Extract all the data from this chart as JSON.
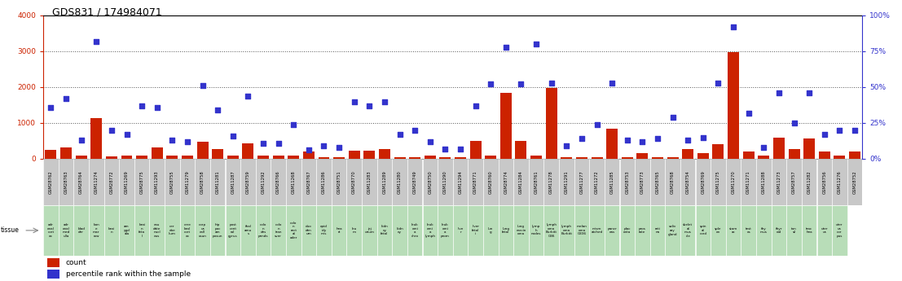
{
  "title": "GDS831 / 174984071",
  "samples": [
    "GSM28762",
    "GSM28763",
    "GSM28764",
    "GSM11274",
    "GSM28772",
    "GSM11269",
    "GSM28775",
    "GSM11293",
    "GSM28755",
    "GSM11279",
    "GSM28758",
    "GSM11281",
    "GSM11287",
    "GSM28759",
    "GSM11292",
    "GSM28766",
    "GSM11268",
    "GSM28767",
    "GSM11286",
    "GSM28751",
    "GSM28770",
    "GSM11283",
    "GSM11289",
    "GSM11280",
    "GSM28749",
    "GSM28750",
    "GSM11290",
    "GSM11294",
    "GSM28771",
    "GSM28760",
    "GSM28774",
    "GSM11284",
    "GSM28761",
    "GSM11278",
    "GSM11291",
    "GSM11277",
    "GSM11272",
    "GSM11285",
    "GSM28753",
    "GSM28773",
    "GSM28765",
    "GSM28768",
    "GSM28754",
    "GSM28769",
    "GSM11275",
    "GSM11270",
    "GSM11271",
    "GSM11288",
    "GSM11273",
    "GSM28757",
    "GSM11282",
    "GSM28756",
    "GSM11276",
    "GSM28752"
  ],
  "tissues": [
    "adr\nenal\ncort\nex",
    "adr\nenal\nmed\nulla",
    "blad\nder",
    "bon\ne\nmar\nrow",
    "brai\nn",
    "am\nygd\nala",
    "brai\nn\nfeta\nl",
    "cau\ndate\nnucl\neus",
    "cer\nebe\nllum",
    "cere\nbral\ncort\nex",
    "corp\nus\ncall\nosun",
    "hip\npoc\nam\nposun",
    "post\ncent\nral\ngyrus",
    "thal\namu\ns",
    "colo\nn\ndes\npends",
    "colo\nn\ntran\nsver",
    "colo\nn\nrect\nal\nader",
    "duo\nden\num",
    "epid\nidy\nmis",
    "hea\nrt",
    "leu\nm",
    "jej\nunum",
    "kidn\ney\nfetal",
    "kidn\ney",
    "leuk\nemi\na\nchro",
    "leuk\nemi\na\nlymph",
    "leuk\nemi\na\nprom",
    "live\nr",
    "liver\nfetal\ni",
    "lun\ng",
    "lung\nfetal",
    "lung\ncarcin\noma",
    "lymp\nh\nnodes",
    "lymph\noma\nBurkitt\nG36",
    "lymph\noma\nBurkitt",
    "melan\noma\nG336",
    "mism\natched",
    "pancr\neas",
    "plac\nenta",
    "pros\ntate",
    "reti\nna",
    "saliv\nary\ngland",
    "skelet\nal\nmus\ncle",
    "spin\nal\ncord",
    "sple\nen",
    "stom\nac",
    "test\nes",
    "thy\nmus",
    "thyr\noid",
    "ton\nsil",
    "trac\nhea",
    "uter\nus",
    "uter\nus\ncor\npus"
  ],
  "counts": [
    240,
    320,
    80,
    1130,
    70,
    80,
    80,
    310,
    80,
    80,
    480,
    280,
    80,
    420,
    80,
    80,
    80,
    200,
    40,
    50,
    220,
    230,
    280,
    40,
    40,
    80,
    40,
    40,
    500,
    80,
    1850,
    500,
    80,
    1980,
    40,
    40,
    40,
    850,
    40,
    160,
    40,
    40,
    280,
    160,
    400,
    2980,
    200,
    80,
    600,
    260,
    560,
    200,
    80,
    200
  ],
  "percentiles": [
    36,
    42,
    13,
    82,
    20,
    17,
    37,
    36,
    13,
    12,
    51,
    34,
    16,
    44,
    11,
    11,
    24,
    6,
    9,
    8,
    40,
    37,
    40,
    17,
    20,
    12,
    7,
    7,
    37,
    52,
    78,
    52,
    80,
    53,
    9,
    14,
    24,
    53,
    13,
    12,
    14,
    29,
    13,
    15,
    53,
    92,
    32,
    8,
    46,
    25,
    46,
    17,
    20,
    20
  ],
  "ylim_left": [
    0,
    4000
  ],
  "ylim_right": [
    0,
    100
  ],
  "yticks_left": [
    0,
    1000,
    2000,
    3000,
    4000
  ],
  "yticks_right": [
    0,
    25,
    50,
    75,
    100
  ],
  "bar_color": "#cc2200",
  "scatter_color": "#3333cc",
  "grid_color": "#555555",
  "bg_color": "#ffffff",
  "left_axis_color": "#cc2200",
  "right_axis_color": "#3333cc",
  "sample_box_color": "#c8c8c8",
  "tissue_box_color": "#b8ddb8"
}
